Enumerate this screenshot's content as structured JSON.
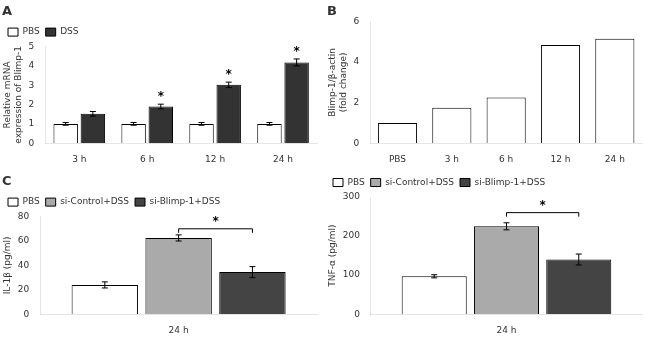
{
  "chart_data": [
    {
      "type": "bar",
      "title": "A",
      "categories": [
        "3 h",
        "6 h",
        "12 h",
        "24 h"
      ],
      "series": [
        {
          "name": "PBS",
          "color": "white",
          "values": [
            1.0,
            1.0,
            1.0,
            1.0
          ],
          "errors": [
            0.07,
            0.07,
            0.07,
            0.07
          ]
        },
        {
          "name": "DSS",
          "color": "#333333",
          "values": [
            1.52,
            1.9,
            3.02,
            4.18
          ],
          "errors": [
            0.12,
            0.12,
            0.14,
            0.18
          ]
        }
      ],
      "ylabel": "Relative mRNA\nexpression of Blimp-1",
      "ylim": [
        0,
        5
      ],
      "yticks": [
        0,
        1,
        2,
        3,
        4,
        5
      ],
      "legend": "upper left",
      "grid": false,
      "annotations": [
        {
          "text": "*",
          "series": "DSS",
          "category": "6 h"
        },
        {
          "text": "*",
          "series": "DSS",
          "category": "12 h"
        },
        {
          "text": "*",
          "series": "DSS",
          "category": "24 h"
        }
      ]
    },
    {
      "type": "bar",
      "title": "B",
      "categories": [
        "PBS",
        "3 h",
        "6 h",
        "12 h",
        "24 h"
      ],
      "values": [
        1.0,
        1.75,
        2.25,
        4.85,
        5.15
      ],
      "color": "white",
      "ylabel": "Blimp-1/β-actin\n(fold change)",
      "ylim": [
        0,
        6
      ],
      "yticks": [
        0,
        2,
        4,
        6
      ],
      "grid": false
    },
    {
      "type": "bar",
      "title": "C",
      "categories": [
        "24 h"
      ],
      "series": [
        {
          "name": "PBS",
          "color": "white",
          "values": [
            24.0
          ],
          "errors": [
            2.5
          ]
        },
        {
          "name": "si-Control+DSS",
          "color": "#aaaaaa",
          "values": [
            62.5
          ],
          "errors": [
            2.5
          ]
        },
        {
          "name": "si-Blimp-1+DSS",
          "color": "#444444",
          "values": [
            34.5
          ],
          "errors": [
            4.5
          ]
        }
      ],
      "ylabel": "IL-1β (pg/ml)",
      "ylim": [
        0,
        80
      ],
      "yticks": [
        0,
        20,
        40,
        60,
        80
      ],
      "legend": "upper left",
      "grid": false,
      "annotations": [
        {
          "text": "*",
          "from": "si-Control+DSS",
          "to": "si-Blimp-1+DSS",
          "y": 70
        }
      ]
    },
    {
      "type": "bar",
      "categories": [
        "24 h"
      ],
      "series": [
        {
          "name": "PBS",
          "color": "white",
          "values": [
            97.0
          ],
          "errors": [
            4.0
          ]
        },
        {
          "name": "si-Control+DSS",
          "color": "#aaaaaa",
          "values": [
            225.0
          ],
          "errors": [
            9.0
          ]
        },
        {
          "name": "si-Blimp-1+DSS",
          "color": "#444444",
          "values": [
            140.0
          ],
          "errors": [
            14.0
          ]
        }
      ],
      "ylabel": "TNF-α (pg/ml)",
      "ylim": [
        0,
        300
      ],
      "yticks": [
        0,
        100,
        200,
        300
      ],
      "legend": "upper left",
      "grid": false,
      "annotations": [
        {
          "text": "*",
          "from": "si-Control+DSS",
          "to": "si-Blimp-1+DSS",
          "y": 260
        }
      ]
    }
  ]
}
